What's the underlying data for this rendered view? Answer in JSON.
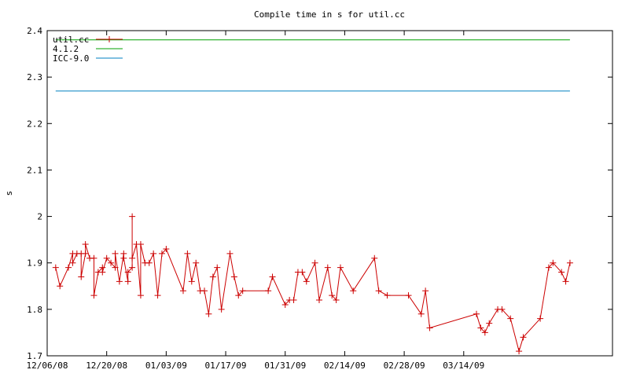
{
  "chart_data": {
    "type": "line",
    "title": "Compile time in s for util.cc",
    "xlabel": "",
    "ylabel": "s",
    "x_type": "date",
    "xlim": [
      "2008-12-06",
      "2009-04-18"
    ],
    "ylim": [
      1.7,
      2.4
    ],
    "y_ticks": [
      "1.7",
      "1.8",
      "1.9",
      "2",
      "2.1",
      "2.2",
      "2.3",
      "2.4"
    ],
    "x_ticks": [
      {
        "label": "12/06/08",
        "date": "2008-12-06"
      },
      {
        "label": "12/20/08",
        "date": "2008-12-20"
      },
      {
        "label": "01/03/09",
        "date": "2009-01-03"
      },
      {
        "label": "01/17/09",
        "date": "2009-01-17"
      },
      {
        "label": "01/31/09",
        "date": "2009-01-31"
      },
      {
        "label": "02/14/09",
        "date": "2009-02-14"
      },
      {
        "label": "02/28/09",
        "date": "2009-02-28"
      },
      {
        "label": "03/14/09",
        "date": "2009-03-14"
      }
    ],
    "grid": false,
    "legend_position": "top-left",
    "series": [
      {
        "name": "util.cc",
        "color": "#cc0000",
        "marker": "plus",
        "points": [
          [
            "2008-12-08",
            1.89
          ],
          [
            "2008-12-09",
            1.85
          ],
          [
            "2008-12-11",
            1.89
          ],
          [
            "2008-12-12",
            1.92
          ],
          [
            "2008-12-12",
            1.9
          ],
          [
            "2008-12-13",
            1.92
          ],
          [
            "2008-12-14",
            1.92
          ],
          [
            "2008-12-14",
            1.87
          ],
          [
            "2008-12-15",
            1.92
          ],
          [
            "2008-12-15",
            1.94
          ],
          [
            "2008-12-16",
            1.91
          ],
          [
            "2008-12-17",
            1.91
          ],
          [
            "2008-12-17",
            1.83
          ],
          [
            "2008-12-18",
            1.88
          ],
          [
            "2008-12-19",
            1.89
          ],
          [
            "2008-12-19",
            1.88
          ],
          [
            "2008-12-20",
            1.91
          ],
          [
            "2008-12-21",
            1.9
          ],
          [
            "2008-12-22",
            1.89
          ],
          [
            "2008-12-22",
            1.92
          ],
          [
            "2008-12-23",
            1.86
          ],
          [
            "2008-12-24",
            1.92
          ],
          [
            "2008-12-24",
            1.91
          ],
          [
            "2008-12-25",
            1.86
          ],
          [
            "2008-12-25",
            1.88
          ],
          [
            "2008-12-26",
            1.89
          ],
          [
            "2008-12-26",
            2.0
          ],
          [
            "2008-12-26",
            1.91
          ],
          [
            "2008-12-27",
            1.94
          ],
          [
            "2008-12-28",
            1.83
          ],
          [
            "2008-12-28",
            1.94
          ],
          [
            "2008-12-29",
            1.9
          ],
          [
            "2008-12-30",
            1.9
          ],
          [
            "2008-12-31",
            1.92
          ],
          [
            "2009-01-01",
            1.83
          ],
          [
            "2009-01-02",
            1.92
          ],
          [
            "2009-01-03",
            1.93
          ],
          [
            "2009-01-07",
            1.84
          ],
          [
            "2009-01-08",
            1.92
          ],
          [
            "2009-01-09",
            1.86
          ],
          [
            "2009-01-10",
            1.9
          ],
          [
            "2009-01-11",
            1.84
          ],
          [
            "2009-01-12",
            1.84
          ],
          [
            "2009-01-13",
            1.79
          ],
          [
            "2009-01-14",
            1.87
          ],
          [
            "2009-01-15",
            1.89
          ],
          [
            "2009-01-16",
            1.8
          ],
          [
            "2009-01-18",
            1.92
          ],
          [
            "2009-01-19",
            1.87
          ],
          [
            "2009-01-20",
            1.83
          ],
          [
            "2009-01-21",
            1.84
          ],
          [
            "2009-01-27",
            1.84
          ],
          [
            "2009-01-28",
            1.87
          ],
          [
            "2009-01-31",
            1.81
          ],
          [
            "2009-02-01",
            1.82
          ],
          [
            "2009-02-02",
            1.82
          ],
          [
            "2009-02-03",
            1.88
          ],
          [
            "2009-02-04",
            1.88
          ],
          [
            "2009-02-05",
            1.86
          ],
          [
            "2009-02-07",
            1.9
          ],
          [
            "2009-02-08",
            1.82
          ],
          [
            "2009-02-10",
            1.89
          ],
          [
            "2009-02-11",
            1.83
          ],
          [
            "2009-02-12",
            1.82
          ],
          [
            "2009-02-13",
            1.89
          ],
          [
            "2009-02-16",
            1.84
          ],
          [
            "2009-02-21",
            1.91
          ],
          [
            "2009-02-22",
            1.84
          ],
          [
            "2009-02-24",
            1.83
          ],
          [
            "2009-03-01",
            1.83
          ],
          [
            "2009-03-04",
            1.79
          ],
          [
            "2009-03-05",
            1.84
          ],
          [
            "2009-03-06",
            1.76
          ],
          [
            "2009-03-17",
            1.79
          ],
          [
            "2009-03-18",
            1.76
          ],
          [
            "2009-03-19",
            1.75
          ],
          [
            "2009-03-20",
            1.77
          ],
          [
            "2009-03-22",
            1.8
          ],
          [
            "2009-03-23",
            1.8
          ],
          [
            "2009-03-25",
            1.78
          ],
          [
            "2009-03-27",
            1.71
          ],
          [
            "2009-03-28",
            1.74
          ],
          [
            "2009-04-01",
            1.78
          ],
          [
            "2009-04-03",
            1.89
          ],
          [
            "2009-04-04",
            1.9
          ],
          [
            "2009-04-06",
            1.88
          ],
          [
            "2009-04-07",
            1.86
          ],
          [
            "2009-04-08",
            1.9
          ]
        ]
      },
      {
        "name": "4.1.2",
        "color": "#00a000",
        "marker": "none",
        "points": [
          [
            "2008-12-08",
            2.38
          ],
          [
            "2009-04-08",
            2.38
          ]
        ]
      },
      {
        "name": "ICC-9.0",
        "color": "#0080c0",
        "marker": "none",
        "points": [
          [
            "2008-12-08",
            2.27
          ],
          [
            "2009-04-08",
            2.27
          ]
        ]
      }
    ]
  }
}
